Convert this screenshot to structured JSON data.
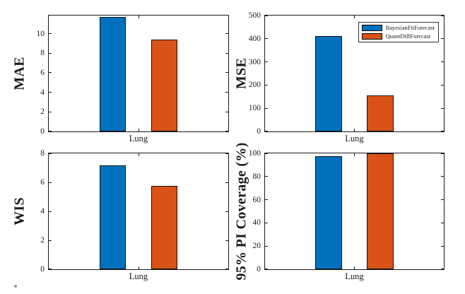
{
  "figure": {
    "background": "#ffffff",
    "axis_color": "#1a1a1a",
    "series_colors": {
      "blue": "#0072BD",
      "orange": "#D95319"
    },
    "legend": {
      "position": "northeast",
      "items": [
        {
          "label": "BayesianFitForecast",
          "color": "#0072BD"
        },
        {
          "label": "QuantDiffForecast",
          "color": "#D95319"
        }
      ]
    },
    "stray_dot_color": "#9a9a6d"
  },
  "chart_data": [
    {
      "type": "bar",
      "ylabel": "MAE",
      "categories": [
        "Lung"
      ],
      "series": [
        {
          "name": "BayesianFitForecast",
          "color": "#0072BD",
          "values": [
            11.7
          ]
        },
        {
          "name": "QuantDiffForecast",
          "color": "#D95319",
          "values": [
            9.4
          ]
        }
      ],
      "ylim": [
        0,
        11.85
      ],
      "yticks": [
        0,
        2,
        4,
        6,
        8,
        10
      ],
      "grid": false,
      "legend_visible": false
    },
    {
      "type": "bar",
      "ylabel": "MSE",
      "categories": [
        "Lung"
      ],
      "series": [
        {
          "name": "BayesianFitForecast",
          "color": "#0072BD",
          "values": [
            412
          ]
        },
        {
          "name": "QuantDiffForecast",
          "color": "#D95319",
          "values": [
            155
          ]
        }
      ],
      "ylim": [
        0,
        500
      ],
      "yticks": [
        0,
        100,
        200,
        300,
        400,
        500
      ],
      "grid": false,
      "legend_visible": true
    },
    {
      "type": "bar",
      "ylabel": "WIS",
      "categories": [
        "Lung"
      ],
      "series": [
        {
          "name": "BayesianFitForecast",
          "color": "#0072BD",
          "values": [
            7.15
          ]
        },
        {
          "name": "QuantDiffForecast",
          "color": "#D95319",
          "values": [
            5.75
          ]
        }
      ],
      "ylim": [
        0,
        8
      ],
      "yticks": [
        0,
        2,
        4,
        6,
        8
      ],
      "grid": false,
      "legend_visible": false
    },
    {
      "type": "bar",
      "ylabel": "95% PI Coverage (%)",
      "categories": [
        "Lung"
      ],
      "series": [
        {
          "name": "BayesianFitForecast",
          "color": "#0072BD",
          "values": [
            97.5
          ]
        },
        {
          "name": "QuantDiffForecast",
          "color": "#D95319",
          "values": [
            100
          ]
        }
      ],
      "ylim": [
        0,
        100
      ],
      "yticks": [
        0,
        20,
        40,
        60,
        80,
        100
      ],
      "grid": false,
      "legend_visible": false
    }
  ]
}
